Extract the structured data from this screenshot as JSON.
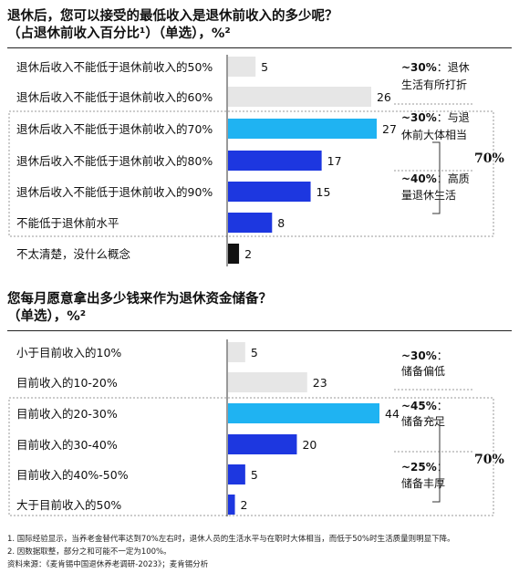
{
  "chart_data": [
    {
      "type": "bar",
      "orientation": "horizontal",
      "title": "退休后，您可以接受的最低收入是退休前收入的多少呢？",
      "subtitle": "（占退休前收入百分比¹）（单选），%²",
      "categories": [
        "退休后收入不能低于退休前收入的50%",
        "退休后收入不能低于退休前收入的60%",
        "退休后收入不能低于退休前收入的70%",
        "退休后收入不能低于退休前收入的80%",
        "退休后收入不能低于退休前收入的90%",
        "不能低于退休前水平",
        "不太清楚，没什么概念"
      ],
      "values": [
        5,
        26,
        27,
        17,
        15,
        8,
        2
      ],
      "bar_colors": [
        "#e6e6e6",
        "#e6e6e6",
        "#1fb3f2",
        "#1d37e0",
        "#1d37e0",
        "#1d37e0",
        "#111111"
      ],
      "annotations": [
        {
          "pct": "~30%",
          "text_lines": [
            "：退休",
            "生活有所打折"
          ]
        },
        {
          "pct": "~30%",
          "text_lines": [
            "：与退",
            "休前大体相当"
          ]
        },
        {
          "pct": "~40%",
          "text_lines": [
            "：高质",
            "量退休生活"
          ]
        }
      ],
      "bracket_total": "70%",
      "xlim": [
        0,
        27
      ]
    },
    {
      "type": "bar",
      "orientation": "horizontal",
      "title": "您每月愿意拿出多少钱来作为退休资金储备？",
      "subtitle": "（单选），%²",
      "categories": [
        "小于目前收入的10%",
        "目前收入的10-20%",
        "目前收入的20-30%",
        "目前收入的30-40%",
        "目前收入的40%-50%",
        "大于目前收入的50%"
      ],
      "values": [
        5,
        23,
        44,
        20,
        5,
        2
      ],
      "bar_colors": [
        "#e6e6e6",
        "#e6e6e6",
        "#1fb3f2",
        "#1d37e0",
        "#1d37e0",
        "#1d37e0"
      ],
      "annotations": [
        {
          "pct": "~30%",
          "text_lines": [
            "：",
            "储备偏低"
          ]
        },
        {
          "pct": "~45%",
          "text_lines": [
            "：",
            "储备充足"
          ]
        },
        {
          "pct": "~25%",
          "text_lines": [
            "：",
            "储备丰厚"
          ]
        }
      ],
      "bracket_total": "70%",
      "xlim": [
        0,
        44
      ]
    }
  ],
  "footnotes": [
    "1.   国际经验显示，当养老金替代率达到70%左右时，退休人员的生活水平与在职时大体相当，而低于50%时生活质量则明显下降。",
    "2.   因数据取整，部分之和可能不一定为100%。",
    "资料来源：《麦肯锡中国退休养老调研-2023》；麦肯锡分析"
  ]
}
